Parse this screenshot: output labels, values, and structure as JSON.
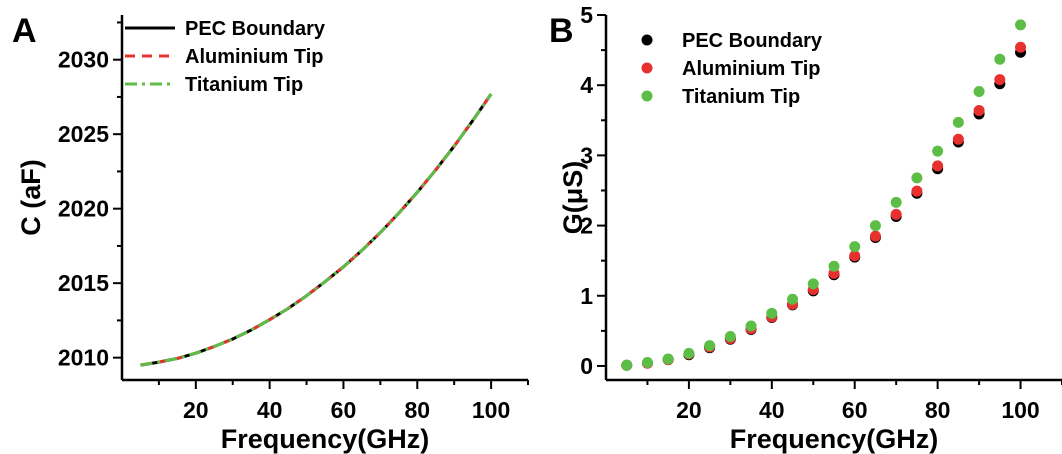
{
  "figure": {
    "colors": {
      "pec": "#000000",
      "aluminium": "#e8302f",
      "titanium": "#5cbd47"
    }
  },
  "chart_data": [
    {
      "panel_label": "A",
      "type": "line",
      "xlabel": "Frequency(GHz)",
      "ylabel": "C (aF)",
      "xlim": [
        0,
        110
      ],
      "ylim": [
        2008.5,
        2033.0
      ],
      "xticks": [
        20,
        40,
        60,
        80,
        100
      ],
      "yticks": [
        2010,
        2015,
        2020,
        2025,
        2030
      ],
      "x_minor_step": 10,
      "y_minor_step": 2.5,
      "legend": "top-left",
      "series": [
        {
          "name": "PEC Boundary",
          "line_style": "solid",
          "color": "#000000",
          "x": [
            5,
            10,
            15,
            20,
            25,
            30,
            35,
            40,
            45,
            50,
            55,
            60,
            65,
            70,
            75,
            80,
            85,
            90,
            95,
            100
          ],
          "values": [
            2009.5,
            2009.7,
            2009.95,
            2010.3,
            2010.75,
            2011.25,
            2011.85,
            2012.55,
            2013.3,
            2014.15,
            2015.1,
            2016.1,
            2017.2,
            2018.4,
            2019.7,
            2021.1,
            2022.6,
            2024.2,
            2025.9,
            2027.7
          ]
        },
        {
          "name": "Aluminium Tip",
          "line_style": "dashed",
          "color": "#e8302f",
          "x": [
            5,
            10,
            15,
            20,
            25,
            30,
            35,
            40,
            45,
            50,
            55,
            60,
            65,
            70,
            75,
            80,
            85,
            90,
            95,
            100
          ],
          "values": [
            2009.5,
            2009.7,
            2009.95,
            2010.3,
            2010.75,
            2011.25,
            2011.85,
            2012.55,
            2013.3,
            2014.15,
            2015.1,
            2016.1,
            2017.2,
            2018.4,
            2019.7,
            2021.1,
            2022.6,
            2024.2,
            2025.9,
            2027.7
          ]
        },
        {
          "name": "Titanium Tip",
          "line_style": "dash-dot",
          "color": "#5cbd47",
          "x": [
            5,
            10,
            15,
            20,
            25,
            30,
            35,
            40,
            45,
            50,
            55,
            60,
            65,
            70,
            75,
            80,
            85,
            90,
            95,
            100
          ],
          "values": [
            2009.5,
            2009.7,
            2009.95,
            2010.3,
            2010.75,
            2011.25,
            2011.85,
            2012.55,
            2013.3,
            2014.15,
            2015.1,
            2016.1,
            2017.2,
            2018.4,
            2019.7,
            2021.1,
            2022.6,
            2024.2,
            2025.9,
            2027.7
          ]
        }
      ]
    },
    {
      "panel_label": "B",
      "type": "scatter",
      "xlabel": "Frequency(GHz)",
      "ylabel": "G(μS)",
      "xlim": [
        0,
        110
      ],
      "ylim": [
        -0.2,
        5.0
      ],
      "xticks": [
        20,
        40,
        60,
        80,
        100
      ],
      "yticks": [
        0,
        1,
        2,
        3,
        4,
        5
      ],
      "x_minor_step": 10,
      "y_minor_step": 0.5,
      "legend": "top-left",
      "series": [
        {
          "name": "PEC Boundary",
          "color": "#000000",
          "x": [
            5,
            10,
            15,
            20,
            25,
            30,
            35,
            40,
            45,
            50,
            55,
            60,
            65,
            70,
            75,
            80,
            85,
            90,
            95,
            100
          ],
          "values": [
            0.01,
            0.04,
            0.09,
            0.16,
            0.26,
            0.38,
            0.52,
            0.69,
            0.87,
            1.07,
            1.3,
            1.55,
            1.83,
            2.13,
            2.46,
            2.81,
            3.19,
            3.59,
            4.02,
            4.47
          ]
        },
        {
          "name": "Aluminium Tip",
          "color": "#e8302f",
          "x": [
            5,
            10,
            15,
            20,
            25,
            30,
            35,
            40,
            45,
            50,
            55,
            60,
            65,
            70,
            75,
            80,
            85,
            90,
            95,
            100
          ],
          "values": [
            0.01,
            0.04,
            0.09,
            0.17,
            0.27,
            0.39,
            0.53,
            0.7,
            0.88,
            1.09,
            1.32,
            1.57,
            1.85,
            2.16,
            2.49,
            2.85,
            3.23,
            3.64,
            4.08,
            4.54
          ]
        },
        {
          "name": "Titanium Tip",
          "color": "#5cbd47",
          "x": [
            5,
            10,
            15,
            20,
            25,
            30,
            35,
            40,
            45,
            50,
            55,
            60,
            65,
            70,
            75,
            80,
            85,
            90,
            95,
            100
          ],
          "values": [
            0.01,
            0.05,
            0.1,
            0.18,
            0.29,
            0.42,
            0.57,
            0.75,
            0.95,
            1.17,
            1.42,
            1.7,
            2.0,
            2.33,
            2.68,
            3.06,
            3.47,
            3.91,
            4.37,
            4.86
          ]
        }
      ]
    }
  ]
}
